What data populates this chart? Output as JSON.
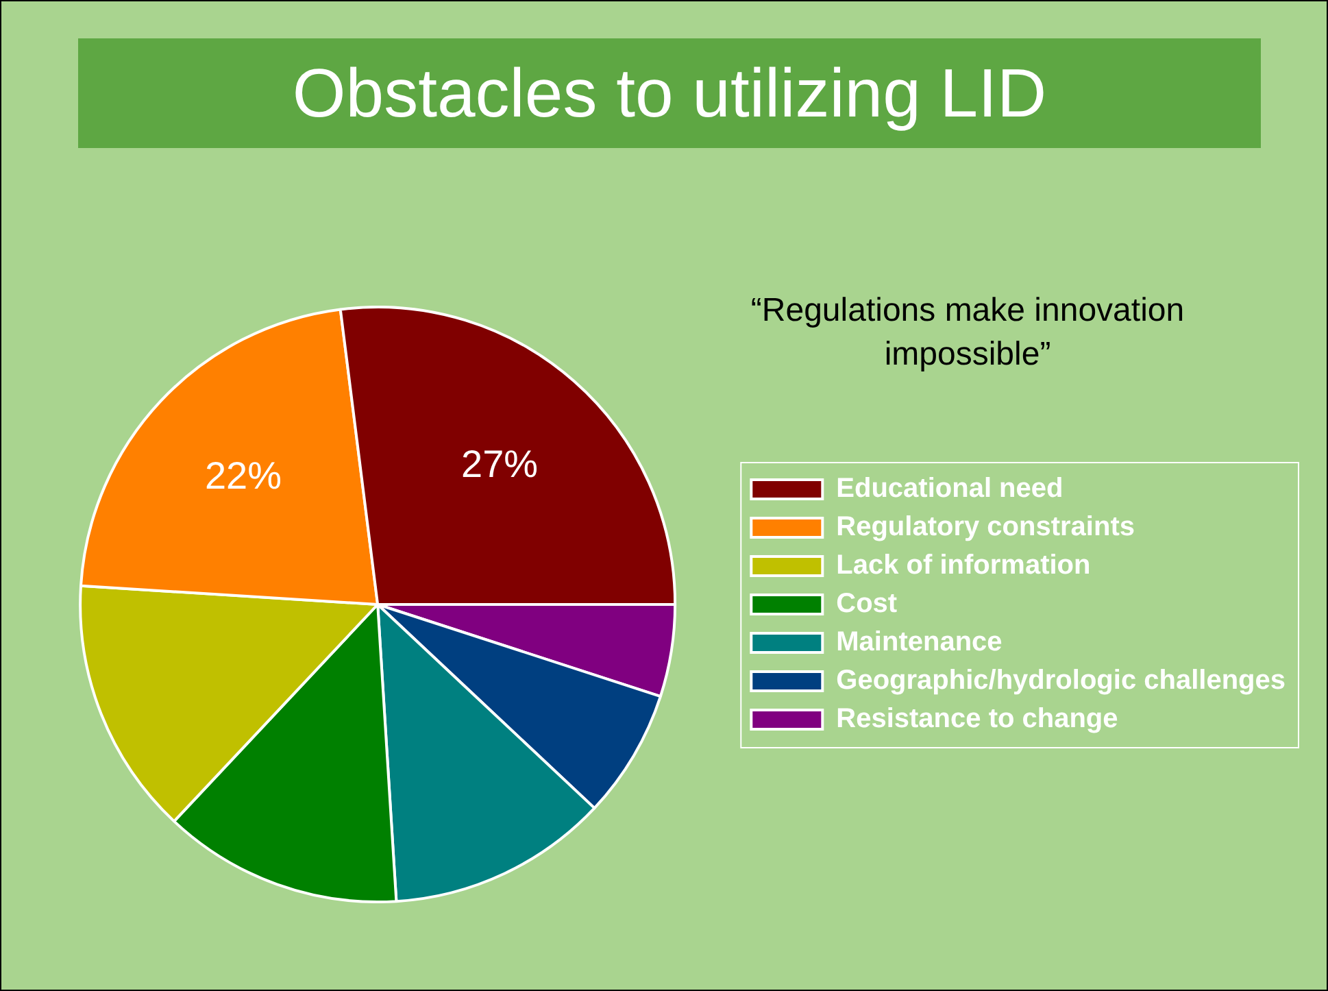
{
  "chart_data": {
    "type": "pie",
    "title": "Obstacles to utilizing LID",
    "annotations": [
      "“Regulations make innovation impossible”"
    ],
    "categories": [
      "Educational need",
      "Regulatory constraints",
      "Lack of information",
      "Cost",
      "Maintenance",
      "Geographic/hydrologic challenges",
      "Resistance to change"
    ],
    "values": [
      27,
      22,
      14,
      13,
      12,
      7,
      5
    ],
    "colors": [
      "#800000",
      "#ff8000",
      "#c0c000",
      "#008000",
      "#008080",
      "#003f80",
      "#800080"
    ],
    "value_labels": [
      "27%",
      "22%",
      null,
      null,
      null,
      null,
      null
    ],
    "legend": "right"
  }
}
